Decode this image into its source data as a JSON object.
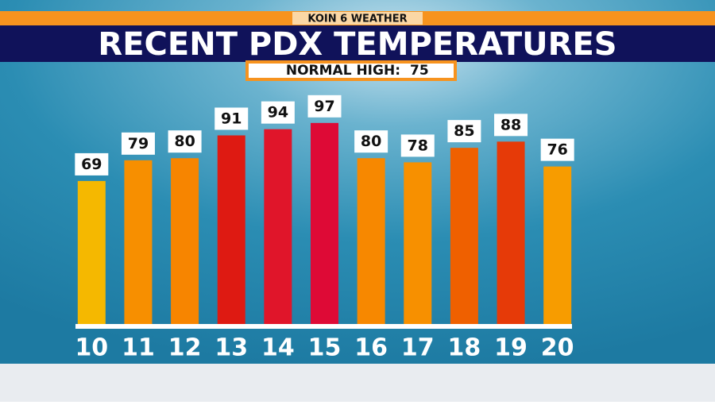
{
  "header": "KOIN 6 WEATHER",
  "chart_data": {
    "type": "bar",
    "title": "RECENT PDX TEMPERATURES",
    "annotation": {
      "label": "NORMAL HIGH:",
      "value": 75
    },
    "categories": [
      "10",
      "11",
      "12",
      "13",
      "14",
      "15",
      "16",
      "17",
      "18",
      "19",
      "20"
    ],
    "values": [
      69,
      79,
      80,
      91,
      94,
      97,
      80,
      78,
      85,
      88,
      76
    ],
    "colors": [
      "#f5b800",
      "#f78f00",
      "#f78500",
      "#de1a12",
      "#e0152a",
      "#de0a36",
      "#f78800",
      "#f79000",
      "#ef6000",
      "#e63a08",
      "#f79c00"
    ],
    "ylim": [
      0,
      100
    ]
  }
}
